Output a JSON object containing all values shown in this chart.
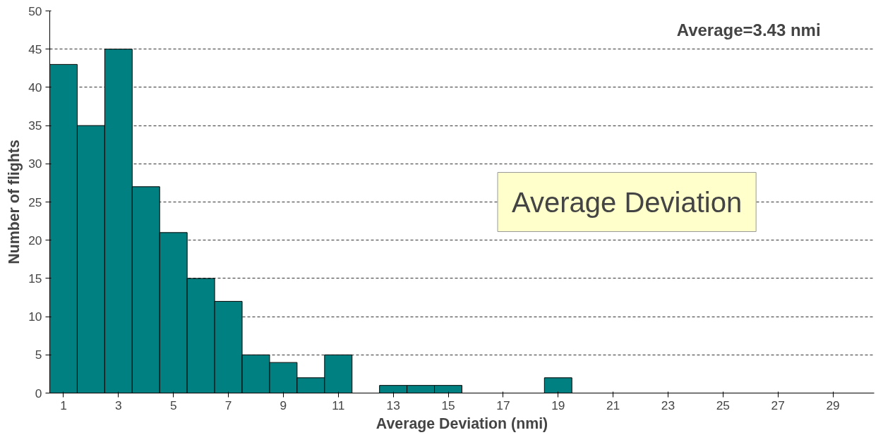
{
  "chart_data": {
    "type": "histogram",
    "xlabel": "Average Deviation (nmi)",
    "ylabel": "Number of flights",
    "bins": [
      0.5,
      1.5,
      2.5,
      3.5,
      4.5,
      5.5,
      6.5,
      7.5,
      8.5,
      9.5,
      10.5,
      11.5,
      12.5,
      13.5,
      14.5,
      15.5,
      16.5,
      17.5,
      18.5,
      19.5,
      20.5,
      21.5,
      22.5,
      23.5,
      24.5,
      25.5,
      26.5,
      27.5,
      28.5,
      29.5,
      30.5
    ],
    "values": [
      43,
      35,
      45,
      27,
      21,
      15,
      12,
      5,
      4,
      2,
      5,
      0,
      1,
      1,
      1,
      0,
      0,
      0,
      2,
      0,
      0,
      0,
      0,
      0,
      0,
      0,
      0,
      0,
      0,
      0
    ],
    "color": "#008080",
    "xlim": [
      0.5,
      30.5
    ],
    "xticks": [
      1,
      3,
      5,
      7,
      9,
      11,
      13,
      15,
      17,
      19,
      21,
      23,
      25,
      27,
      29
    ],
    "ylim": [
      0,
      50
    ],
    "yticks": [
      0,
      5,
      10,
      15,
      20,
      25,
      30,
      35,
      40,
      45,
      50
    ],
    "grid": "y",
    "line_style": "dashed",
    "annotations": [
      "Average=3.43 nmi",
      "Average Deviation"
    ]
  }
}
